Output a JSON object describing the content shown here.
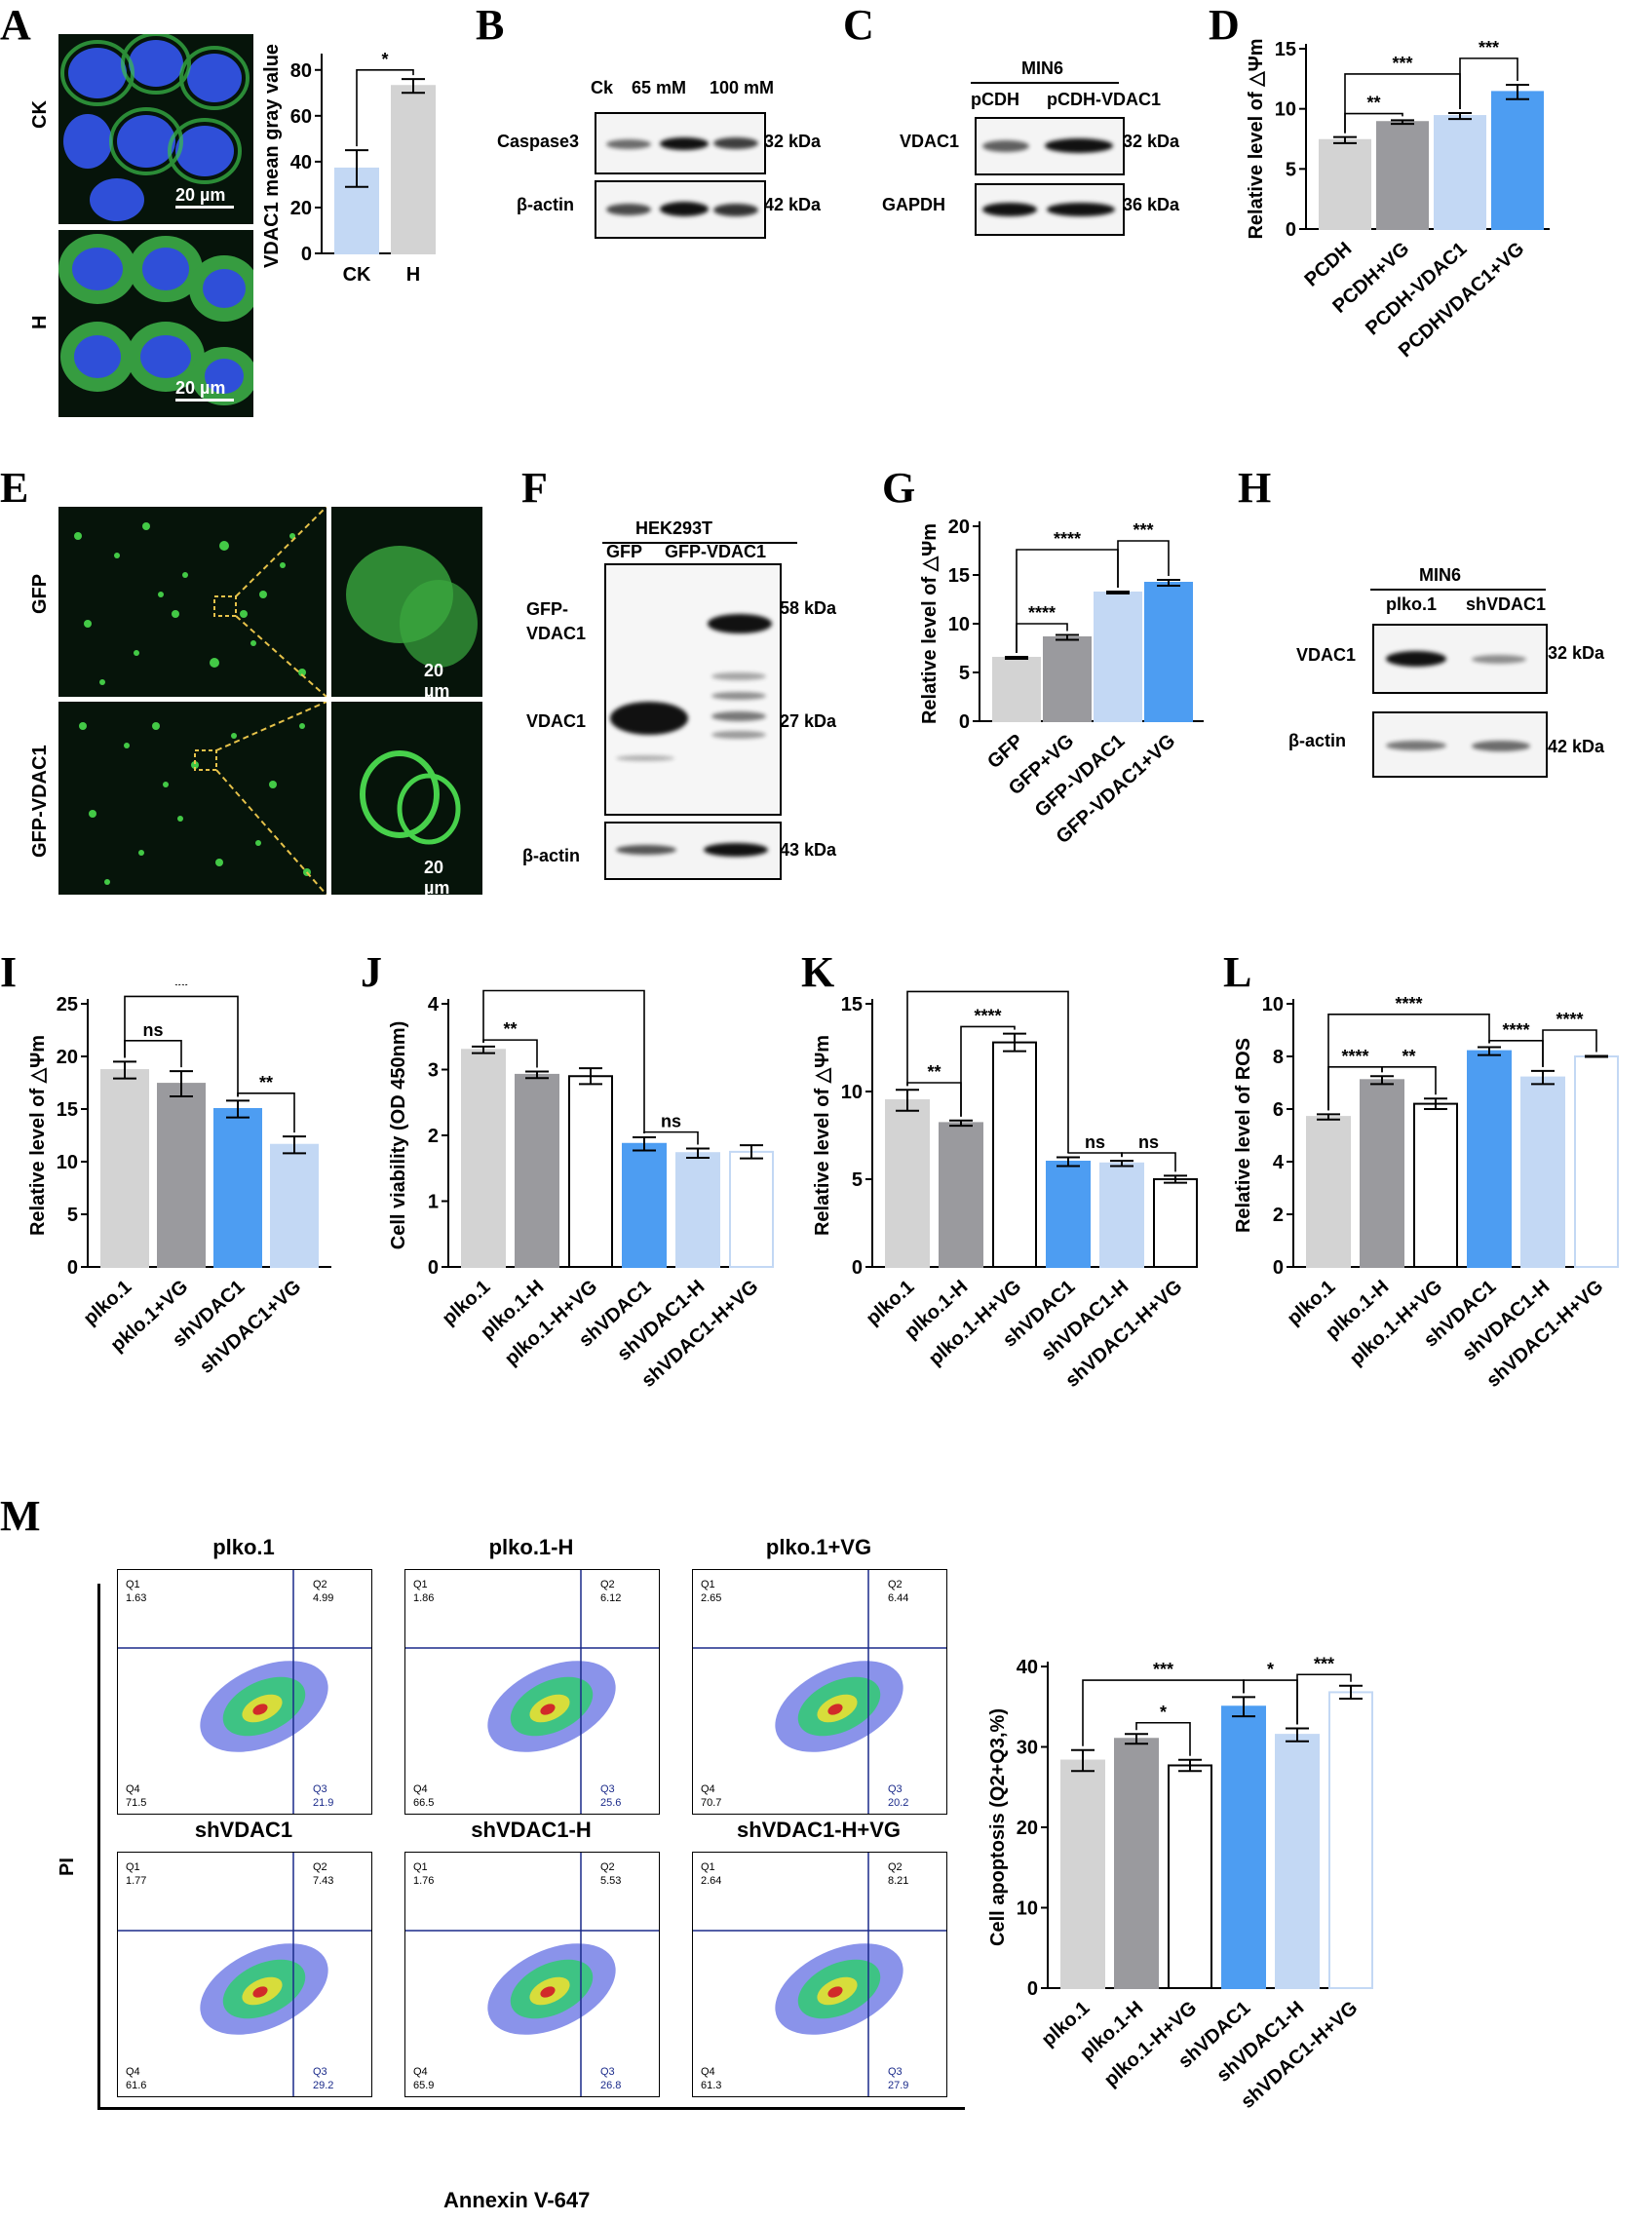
{
  "panels": {
    "A": {
      "letter": "A",
      "rows": [
        "CK",
        "H"
      ],
      "scale": "20 µm",
      "chart": {
        "ylabel": "VDAC1 mean gray value",
        "categories": [
          "CK",
          "H"
        ],
        "values": [
          37,
          73
        ],
        "errors": [
          8,
          3
        ],
        "colors": [
          "#c3d8f4",
          "#d3d3d3"
        ],
        "edge": [
          "#c3d8f4",
          "#d3d3d3"
        ],
        "yticks": [
          0,
          20,
          40,
          60,
          80
        ],
        "ylim": [
          0,
          85
        ],
        "sig": [
          {
            "a": 0,
            "b": 1,
            "y": 80,
            "text": "*"
          }
        ]
      }
    },
    "B": {
      "letter": "B",
      "lanes": [
        "Ck",
        "65 mM",
        "100 mM"
      ],
      "rows": [
        "Caspase3",
        "β-actin"
      ],
      "kda": [
        "32 kDa",
        "42 kDa"
      ]
    },
    "C": {
      "letter": "C",
      "header": "MIN6",
      "lanes": [
        "pCDH",
        "pCDH-VDAC1"
      ],
      "rows": [
        "VDAC1",
        "GAPDH"
      ],
      "kda": [
        "32 kDa",
        "36 kDa"
      ]
    },
    "D": {
      "letter": "D",
      "chart": {
        "ylabel": "Relative level of △Ψm",
        "categories": [
          "PCDH",
          "PCDH+VG",
          "PCDH-VDAC1",
          "PCDHVDAC1+VG"
        ],
        "values": [
          7.4,
          8.9,
          9.4,
          11.4
        ],
        "errors": [
          0.25,
          0.15,
          0.25,
          0.6
        ],
        "colors": [
          "#d3d3d3",
          "#9a9a9e",
          "#c3d8f4",
          "#4d9df2"
        ],
        "edge": [
          "#d3d3d3",
          "#9a9a9e",
          "#c3d8f4",
          "#4d9df2"
        ],
        "yticks": [
          0,
          5,
          10,
          15
        ],
        "ylim": [
          0,
          15
        ],
        "sig": [
          {
            "a": 0,
            "b": 1,
            "y": 9.6,
            "text": "**"
          },
          {
            "a": 0,
            "b": 2,
            "y": 12.9,
            "text": "***"
          },
          {
            "a": 2,
            "b": 3,
            "y": 14.2,
            "text": "***"
          }
        ]
      }
    },
    "E": {
      "letter": "E",
      "rows": [
        "GFP",
        "GFP-VDAC1"
      ],
      "scale": "20 µm"
    },
    "F": {
      "letter": "F",
      "header": "HEK293T",
      "lanes": [
        "GFP",
        "GFP-VDAC1"
      ],
      "rows": [
        "GFP-",
        "VDAC1",
        "VDAC1",
        "β-actin"
      ],
      "kda": [
        "58 kDa",
        "27 kDa",
        "43 kDa"
      ]
    },
    "G": {
      "letter": "G",
      "chart": {
        "ylabel": "Relative level of △Ψm",
        "categories": [
          "GFP",
          "GFP+VG",
          "GFP-VDAC1",
          "GFP-VDAC1+VG"
        ],
        "values": [
          6.5,
          8.6,
          13.2,
          14.2
        ],
        "errors": [
          0.1,
          0.25,
          0.1,
          0.3
        ],
        "colors": [
          "#d3d3d3",
          "#9a9a9e",
          "#c3d8f4",
          "#4d9df2"
        ],
        "edge": [
          "#d3d3d3",
          "#9a9a9e",
          "#c3d8f4",
          "#4d9df2"
        ],
        "yticks": [
          0,
          5,
          10,
          15,
          20
        ],
        "ylim": [
          0,
          20
        ],
        "sig": [
          {
            "a": 0,
            "b": 1,
            "y": 10.0,
            "text": "****"
          },
          {
            "a": 0,
            "b": 2,
            "y": 17.6,
            "text": "****"
          },
          {
            "a": 2,
            "b": 3,
            "y": 18.5,
            "text": "***"
          }
        ]
      }
    },
    "H": {
      "letter": "H",
      "header": "MIN6",
      "lanes": [
        "plko.1",
        "shVDAC1"
      ],
      "rows": [
        "VDAC1",
        "β-actin"
      ],
      "kda": [
        "32 kDa",
        "42 kDa"
      ]
    },
    "I": {
      "letter": "I",
      "chart": {
        "ylabel": "Relative level of △Ψm",
        "categories": [
          "plko.1",
          "pklo.1+VG",
          "shVDAC1",
          "shVDAC1+VG"
        ],
        "values": [
          18.7,
          17.4,
          15.0,
          11.6
        ],
        "errors": [
          0.8,
          1.2,
          0.8,
          0.8
        ],
        "colors": [
          "#d3d3d3",
          "#9a9a9e",
          "#4d9df2",
          "#c3d8f4"
        ],
        "edge": [
          "#d3d3d3",
          "#9a9a9e",
          "#4d9df2",
          "#c3d8f4"
        ],
        "yticks": [
          0,
          5,
          10,
          15,
          20,
          25
        ],
        "ylim": [
          0,
          25
        ],
        "sig": [
          {
            "a": 0,
            "b": 1,
            "y": 21.5,
            "text": "ns"
          },
          {
            "a": 0,
            "b": 2,
            "y": 25.7,
            "text": "**"
          },
          {
            "a": 2,
            "b": 3,
            "y": 16.5,
            "text": "**"
          }
        ]
      }
    },
    "J": {
      "letter": "J",
      "chart": {
        "ylabel": "Cell viability (OD 450nm)",
        "categories": [
          "plko.1",
          "plko.1-H",
          "plko.1-H+VG",
          "shVDAC1",
          "shVDAC1-H",
          "shVDAC1-H+VG"
        ],
        "values": [
          3.3,
          2.92,
          2.9,
          1.87,
          1.73,
          1.75
        ],
        "errors": [
          0.05,
          0.05,
          0.12,
          0.1,
          0.07,
          0.1
        ],
        "colors": [
          "#d3d3d3",
          "#9a9a9e",
          "#ffffff",
          "#4d9df2",
          "#c3d8f4",
          "#ffffff"
        ],
        "edge": [
          "#d3d3d3",
          "#9a9a9e",
          "#000000",
          "#4d9df2",
          "#c3d8f4",
          "#c3d8f4"
        ],
        "yticks": [
          0,
          1,
          2,
          3,
          4
        ],
        "ylim": [
          0,
          4
        ],
        "sig": [
          {
            "a": 0,
            "b": 1,
            "y": 3.45,
            "text": "**"
          },
          {
            "a": 0,
            "b": 3,
            "y": 4.2,
            "text": "****"
          },
          {
            "a": 3,
            "b": 4,
            "y": 2.05,
            "text": "ns"
          }
        ]
      }
    },
    "K": {
      "letter": "K",
      "chart": {
        "ylabel": "Relative level of △Ψm",
        "categories": [
          "plko.1",
          "plko.1-H",
          "plko.1-H+VG",
          "shVDAC1",
          "shVDAC1-H",
          "shVDAC1-H+VG"
        ],
        "values": [
          9.5,
          8.2,
          12.8,
          6.0,
          5.9,
          5.0
        ],
        "errors": [
          0.6,
          0.15,
          0.5,
          0.25,
          0.15,
          0.2
        ],
        "colors": [
          "#d3d3d3",
          "#9a9a9e",
          "#ffffff",
          "#4d9df2",
          "#c3d8f4",
          "#ffffff"
        ],
        "edge": [
          "#d3d3d3",
          "#9a9a9e",
          "#000000",
          "#4d9df2",
          "#c3d8f4",
          "#000000"
        ],
        "yticks": [
          0,
          5,
          10,
          15
        ],
        "ylim": [
          0,
          15
        ],
        "sig": [
          {
            "a": 0,
            "b": 1,
            "y": 10.5,
            "text": "**"
          },
          {
            "a": 1,
            "b": 2,
            "y": 13.7,
            "text": "****"
          },
          {
            "a": 0,
            "b": 3,
            "y": 15.7,
            "text": "****"
          },
          {
            "a": 3,
            "b": 4,
            "y": 6.5,
            "text": "ns"
          },
          {
            "a": 4,
            "b": 5,
            "y": 6.5,
            "text": "ns"
          }
        ]
      }
    },
    "L": {
      "letter": "L",
      "chart": {
        "ylabel": "Relative level of ROS",
        "categories": [
          "plko.1",
          "plko.1-H",
          "plko.1-H+VG",
          "shVDAC1",
          "shVDAC1-H",
          "shVDAC1-H+VG"
        ],
        "values": [
          5.7,
          7.1,
          6.2,
          8.2,
          7.2,
          8.0
        ],
        "errors": [
          0.1,
          0.15,
          0.2,
          0.15,
          0.25,
          0.02
        ],
        "colors": [
          "#d3d3d3",
          "#9a9a9e",
          "#ffffff",
          "#4d9df2",
          "#c3d8f4",
          "#ffffff"
        ],
        "edge": [
          "#d3d3d3",
          "#9a9a9e",
          "#000000",
          "#4d9df2",
          "#c3d8f4",
          "#c3d8f4"
        ],
        "yticks": [
          0,
          2,
          4,
          6,
          8,
          10
        ],
        "ylim": [
          0,
          10
        ],
        "sig": [
          {
            "a": 0,
            "b": 1,
            "y": 7.6,
            "text": "****"
          },
          {
            "a": 0,
            "b": 3,
            "y": 9.6,
            "text": "****"
          },
          {
            "a": 1,
            "b": 2,
            "y": 7.6,
            "text": "**"
          },
          {
            "a": 3,
            "b": 4,
            "y": 8.6,
            "text": "****"
          },
          {
            "a": 4,
            "b": 5,
            "y": 9.0,
            "text": "****"
          }
        ]
      }
    },
    "M": {
      "letter": "M",
      "ylabel": "PI",
      "xlabel": "Annexin V-647",
      "flow": [
        {
          "title": "plko.1",
          "q1": "1.63",
          "q2": "4.99",
          "q3": "21.9",
          "q4": "71.5"
        },
        {
          "title": "plko.1-H",
          "q1": "1.86",
          "q2": "6.12",
          "q3": "25.6",
          "q4": "66.5"
        },
        {
          "title": "plko.1+VG",
          "q1": "2.65",
          "q2": "6.44",
          "q3": "20.2",
          "q4": "70.7"
        },
        {
          "title": "shVDAC1",
          "q1": "1.77",
          "q2": "7.43",
          "q3": "29.2",
          "q4": "61.6"
        },
        {
          "title": "shVDAC1-H",
          "q1": "1.76",
          "q2": "5.53",
          "q3": "26.8",
          "q4": "65.9"
        },
        {
          "title": "shVDAC1-H+VG",
          "q1": "2.64",
          "q2": "8.21",
          "q3": "27.9",
          "q4": "61.3"
        }
      ],
      "qnames": [
        "Q1",
        "Q2",
        "Q3",
        "Q4"
      ],
      "chart": {
        "ylabel": "Cell apoptosis (Q2+Q3,%)",
        "categories": [
          "plko.1",
          "plko.1-H",
          "plko.1-H+VG",
          "shVDAC1",
          "shVDAC1-H",
          "shVDAC1-H+VG"
        ],
        "values": [
          28.3,
          31.0,
          27.7,
          35.0,
          31.5,
          36.8
        ],
        "errors": [
          1.3,
          0.6,
          0.7,
          1.2,
          0.8,
          0.8
        ],
        "colors": [
          "#d3d3d3",
          "#9a9a9e",
          "#ffffff",
          "#4d9df2",
          "#c3d8f4",
          "#ffffff"
        ],
        "edge": [
          "#d3d3d3",
          "#9a9a9e",
          "#000000",
          "#4d9df2",
          "#c3d8f4",
          "#c3d8f4"
        ],
        "yticks": [
          0,
          10,
          20,
          30,
          40
        ],
        "ylim": [
          0,
          40
        ],
        "sig": [
          {
            "a": 1,
            "b": 2,
            "y": 33.0,
            "text": "*"
          },
          {
            "a": 0,
            "b": 3,
            "y": 38.3,
            "text": "***"
          },
          {
            "a": 3,
            "b": 4,
            "y": 38.3,
            "text": "*"
          },
          {
            "a": 4,
            "b": 5,
            "y": 39.0,
            "text": "***"
          }
        ]
      }
    }
  }
}
